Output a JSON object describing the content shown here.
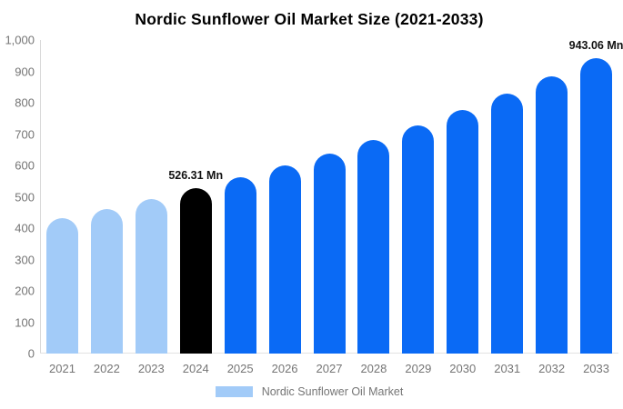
{
  "title": "Nordic Sunflower Oil Market Size (2021-2033)",
  "chart_data": {
    "type": "bar",
    "title": "Nordic Sunflower Oil Market Size (2021-2033)",
    "categories": [
      "2021",
      "2022",
      "2023",
      "2024",
      "2025",
      "2026",
      "2027",
      "2028",
      "2029",
      "2030",
      "2031",
      "2032",
      "2033"
    ],
    "values": [
      433,
      462,
      493,
      526.31,
      561,
      599,
      639,
      682,
      728,
      776,
      828,
      884,
      943.06
    ],
    "bar_colors": [
      "#a2cbf8",
      "#a2cbf8",
      "#a2cbf8",
      "#000000",
      "#0a6af5",
      "#0a6af5",
      "#0a6af5",
      "#0a6af5",
      "#0a6af5",
      "#0a6af5",
      "#0a6af5",
      "#0a6af5",
      "#0a6af5"
    ],
    "annotations": [
      {
        "category_index": 3,
        "text": "526.31 Mn"
      },
      {
        "category_index": 12,
        "text": "943.06 Mn"
      }
    ],
    "xlabel": "",
    "ylabel": "",
    "ylim": [
      0,
      1000
    ],
    "ytick_interval": 100,
    "ytick_labels": [
      "0",
      "100",
      "200",
      "300",
      "400",
      "500",
      "600",
      "700",
      "800",
      "900",
      "1,000"
    ],
    "grid": false,
    "legend_position": "bottom",
    "legend": [
      {
        "label": "Nordic Sunflower Oil Market",
        "color": "#a2cbf8"
      }
    ]
  },
  "colors": {
    "background": "#ffffff",
    "axis_line": "#d9d9d9",
    "baseline": "#e2e2e2",
    "tick_label": "#757575",
    "annotation": "#111111",
    "title": "#000000",
    "bar_past": "#a2cbf8",
    "bar_current": "#000000",
    "bar_forecast": "#0a6af5"
  }
}
